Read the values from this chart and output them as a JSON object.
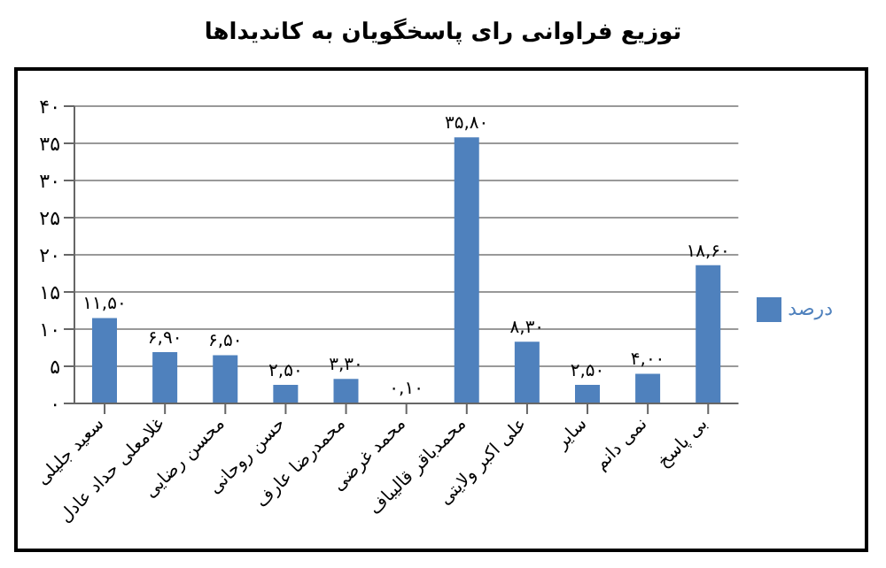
{
  "chart_data": {
    "type": "bar",
    "title": "توزیع فراوانی رای پاسخگویان به کاندیداها",
    "categories": [
      "سعید جلیلی",
      "غلامعلی حداد عادل",
      "محسن رضایی",
      "حسن روحانی",
      "محمدرضا عارف",
      "محمد غرضی",
      "محمدباقر قالیباف",
      "علی اکبر ولایتی",
      "سایر",
      "نمی دانم",
      "بی پاسخ"
    ],
    "series": [
      {
        "name": "درصد",
        "color": "#4f81bd",
        "values": [
          11.5,
          6.9,
          6.5,
          2.5,
          3.3,
          0.1,
          35.8,
          8.3,
          2.5,
          4.0,
          18.6
        ]
      }
    ],
    "value_labels": [
      "۱۱,۵۰",
      "۶,۹۰",
      "۶,۵۰",
      "۲,۵۰",
      "۳,۳۰",
      "۰,۱۰",
      "۳۵,۸۰",
      "۸,۳۰",
      "۲,۵۰",
      "۴,۰۰",
      "۱۸,۶۰"
    ],
    "ylim": [
      0,
      40
    ],
    "yticks": [
      {
        "value": 0,
        "label": "۰"
      },
      {
        "value": 5,
        "label": "۵"
      },
      {
        "value": 10,
        "label": "۱۰"
      },
      {
        "value": 15,
        "label": "۱۵"
      },
      {
        "value": 20,
        "label": "۲۰"
      },
      {
        "value": 25,
        "label": "۲۵"
      },
      {
        "value": 30,
        "label": "۳۰"
      },
      {
        "value": 35,
        "label": "۳۵"
      },
      {
        "value": 40,
        "label": "۴۰"
      }
    ],
    "grid": "y",
    "legend": "right"
  }
}
